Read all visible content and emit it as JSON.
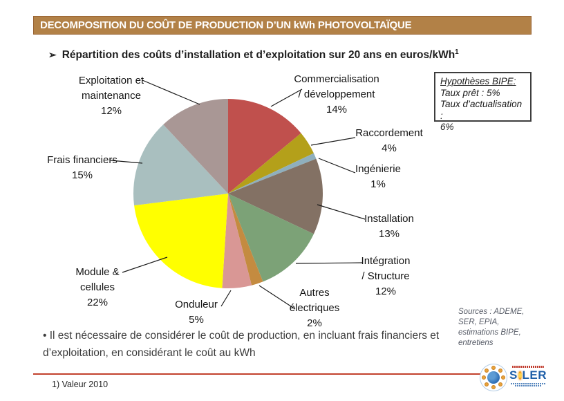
{
  "colors": {
    "title_bar_bg": "#B28147",
    "title_bar_border": "#96602F",
    "footer_line_red": "#C2402C"
  },
  "header": {
    "title": "DECOMPOSITION DU COÛT DE PRODUCTION D’UN kWh PHOTOVOLTAÏQUE"
  },
  "subtitle": {
    "arrow": "➢",
    "text": "Répartition des coûts d’installation et d’exploitation sur 20 ans en euros/kWh",
    "footnote_ref": "1"
  },
  "chart_data": {
    "type": "pie",
    "unit": "%",
    "start_angle": "12 o'clock, clockwise",
    "slices": [
      {
        "id": "commercialisation",
        "label": "Commercialisation / développement",
        "value": 14,
        "color": "#C0504D",
        "label_lines": [
          "Commercialisation",
          "/ développement",
          "14%"
        ]
      },
      {
        "id": "raccordement",
        "label": "Raccordement",
        "value": 4,
        "color": "#B4A01A",
        "label_lines": [
          "Raccordement",
          "4%"
        ]
      },
      {
        "id": "ingenierie",
        "label": "Ingénierie",
        "value": 1,
        "color": "#8FAFBD",
        "label_lines": [
          "Ingénierie",
          "1%"
        ]
      },
      {
        "id": "installation",
        "label": "Installation",
        "value": 13,
        "color": "#837164",
        "label_lines": [
          "Installation",
          "13%"
        ]
      },
      {
        "id": "integration-structure",
        "label": "Intégration / Structure",
        "value": 12,
        "color": "#7CA277",
        "label_lines": [
          "Intégration",
          "/ Structure",
          "12%"
        ]
      },
      {
        "id": "autres-electriques",
        "label": "Autres électriques",
        "value": 2,
        "color": "#C48B40",
        "label_lines": [
          "Autres",
          "électriques",
          "2%"
        ]
      },
      {
        "id": "onduleur",
        "label": "Onduleur",
        "value": 5,
        "color": "#D99795",
        "label_lines": [
          "Onduleur",
          "5%"
        ]
      },
      {
        "id": "module-cellules",
        "label": "Module & cellules",
        "value": 22,
        "color": "#FFFF00",
        "label_lines": [
          "Module &",
          "cellules",
          "22%"
        ]
      },
      {
        "id": "frais-financiers",
        "label": "Frais financiers",
        "value": 15,
        "color": "#A9BFBF",
        "label_lines": [
          "Frais financiers",
          "15%"
        ]
      },
      {
        "id": "exploitation-maintenance",
        "label": "Exploitation et maintenance",
        "value": 12,
        "color": "#A99795",
        "label_lines": [
          "Exploitation et",
          "maintenance",
          "12%"
        ]
      }
    ]
  },
  "hypotheses_box": {
    "title": "Hypothèses BIPE:",
    "line1": "Taux prêt : 5%",
    "line2": "Taux d’actualisation :",
    "line3": "6%"
  },
  "sources": {
    "line1": "Sources : ADEME,",
    "line2": "SER, EPIA,",
    "line3": "estimations BIPE,",
    "line4": "entretiens"
  },
  "note": {
    "text": "• Il est nécessaire de considérer le coût de production, en incluant frais financiers et d’exploitation, en considérant le coût au kWh"
  },
  "footer": {
    "footnote": "1) Valeur 2010",
    "soler_logo": {
      "prefix": "S",
      "suffix": "LER"
    }
  }
}
